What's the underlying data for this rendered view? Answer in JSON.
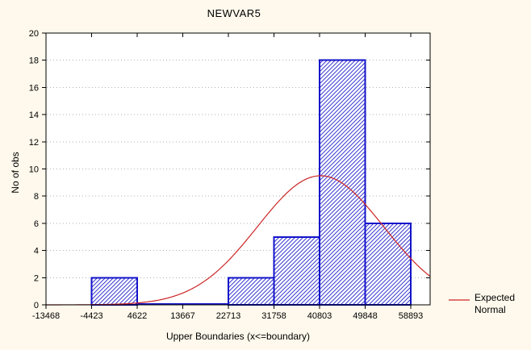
{
  "chart_data": {
    "type": "bar",
    "subtype": "histogram-with-expected-normal-curve",
    "title": "NEWVAR5",
    "xlabel": "Upper Boundaries (x<=boundary)",
    "ylabel": "No of obs",
    "x_boundaries": [
      -13468,
      -4423,
      4622,
      13667,
      22713,
      31758,
      40803,
      49848,
      58893
    ],
    "x_tick_labels": [
      "-13468",
      "-4423",
      "4622",
      "13667",
      "22713",
      "31758",
      "40803",
      "49848",
      "58893"
    ],
    "bin_counts": [
      0,
      2,
      0,
      0,
      2,
      5,
      18,
      6
    ],
    "y_ticks": [
      0,
      2,
      4,
      6,
      8,
      10,
      12,
      14,
      16,
      18,
      20
    ],
    "ylim": [
      0,
      20
    ],
    "xlim": [
      -13468,
      62735
    ],
    "grid": "horizontal-dotted",
    "normal_curve": {
      "mean": 41000,
      "sd": 12500,
      "peak": 9.5
    },
    "legend": {
      "position": "outside-bottom-right",
      "line1": "Expected",
      "line2": "Normal"
    },
    "colors": {
      "window_bg": "#FEF9EC",
      "plot_bg": "#FFFFFF",
      "bar_border": "#1313CB",
      "bar_hatch": "#3B3BD1",
      "curve": "#CD2626",
      "grid": "#B2B2B2",
      "axis": "#000000",
      "text": "#000000"
    }
  }
}
